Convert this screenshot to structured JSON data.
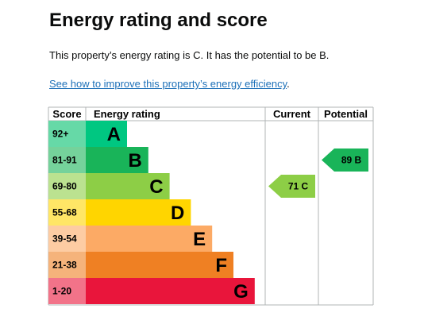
{
  "header": {
    "title": "Energy rating and score"
  },
  "intro": "This property’s energy rating is C. It has the potential to be B.",
  "link": "See how to improve this property’s energy efficiency",
  "link_suffix": ".",
  "table": {
    "headers": [
      "Score",
      "Energy rating",
      "Current",
      "Potential"
    ],
    "rows": [
      {
        "score": "92+",
        "band": "A",
        "color": "#00c781",
        "tint": "#66d9a7"
      },
      {
        "score": "81-91",
        "band": "B",
        "color": "#19b459",
        "tint": "#75d29b"
      },
      {
        "score": "69-80",
        "band": "C",
        "color": "#8dce46",
        "tint": "#bbe290"
      },
      {
        "score": "55-68",
        "band": "D",
        "color": "#ffd500",
        "tint": "#ffe666"
      },
      {
        "score": "39-54",
        "band": "E",
        "color": "#fcaa65",
        "tint": "#fdcca3"
      },
      {
        "score": "21-38",
        "band": "F",
        "color": "#ef8023",
        "tint": "#f5b37b"
      },
      {
        "score": "1-20",
        "band": "G",
        "color": "#e9153b",
        "tint": "#f27389"
      }
    ]
  },
  "current": {
    "value": 71,
    "band": "C"
  },
  "potential": {
    "value": 89,
    "band": "B"
  }
}
